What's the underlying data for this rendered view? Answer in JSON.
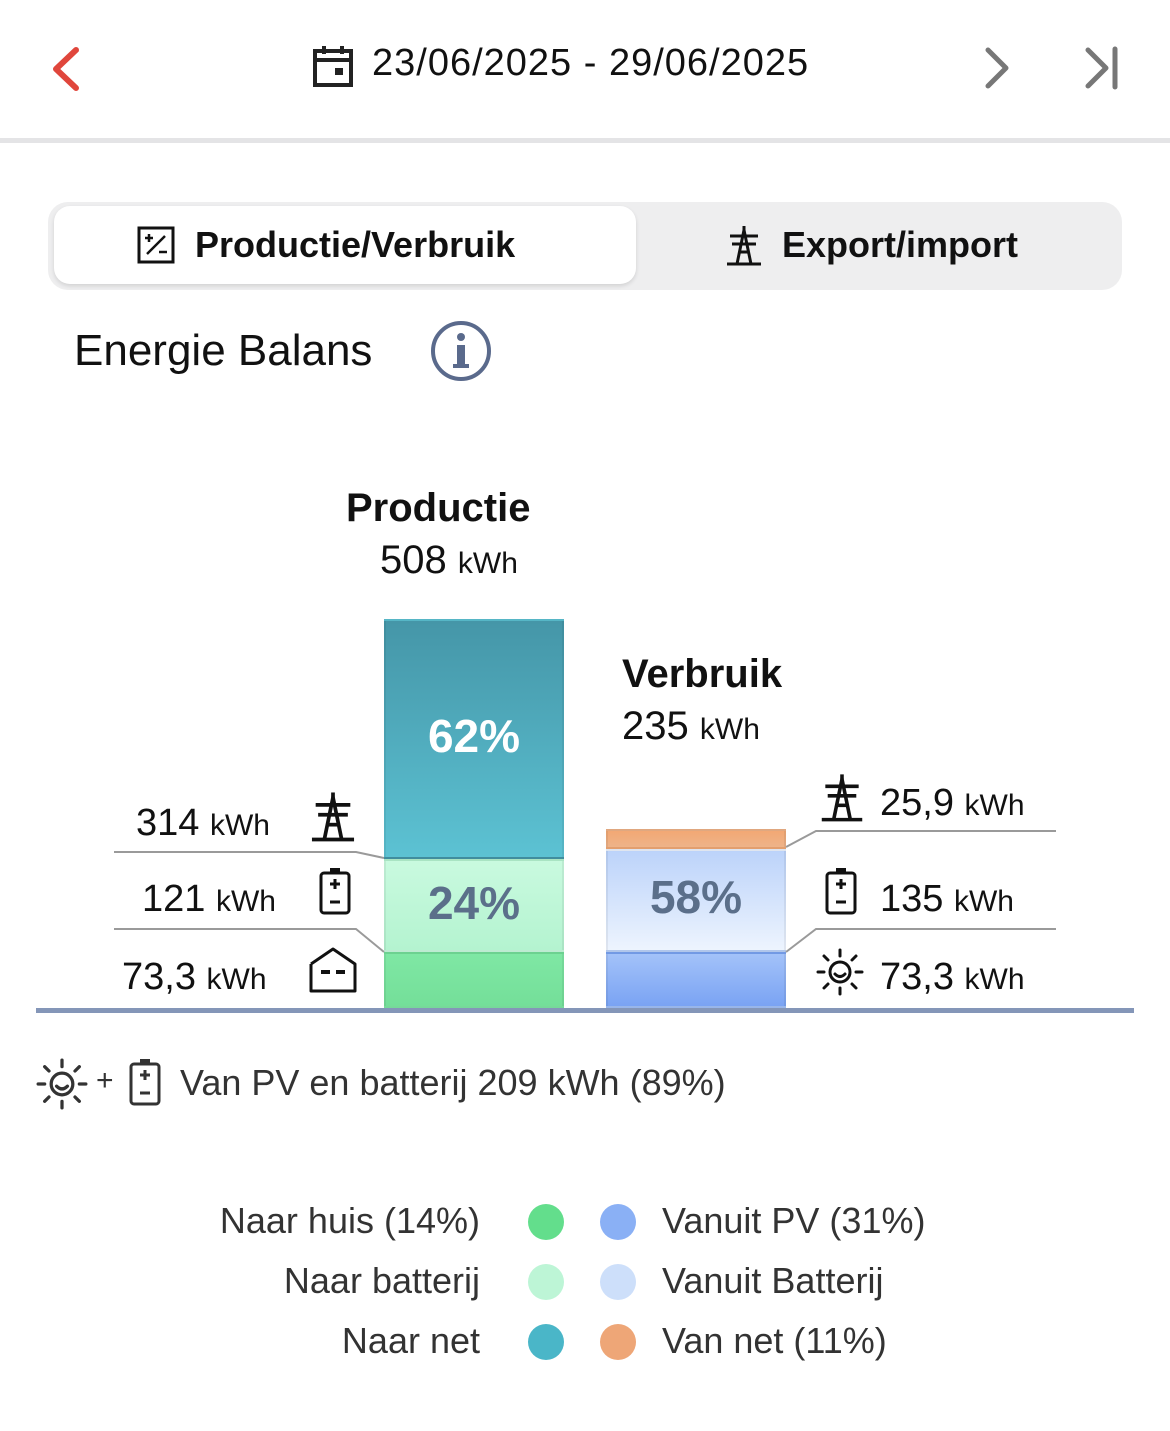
{
  "header": {
    "date_range": "23/06/2025 - 29/06/2025"
  },
  "tabs": [
    {
      "label": "Productie/Verbruik",
      "active": true
    },
    {
      "label": "Export/import",
      "active": false
    }
  ],
  "section": {
    "title": "Energie Balans"
  },
  "chart_data": {
    "type": "bar",
    "categories": [
      "Productie",
      "Verbruik"
    ],
    "production": {
      "label": "Productie",
      "total": "508",
      "unit": "kWh",
      "segments": [
        {
          "name": "Naar huis",
          "kwh": 73.3,
          "value_text": "73,3",
          "percent": "",
          "color": "#7be3a0"
        },
        {
          "name": "Naar batterij",
          "kwh": 121,
          "value_text": "121",
          "percent": "24%",
          "color": "#bdf7d7"
        },
        {
          "name": "Naar net",
          "kwh": 314,
          "value_text": "314",
          "percent": "62%",
          "color": "#4fb7c9"
        }
      ]
    },
    "consumption": {
      "label": "Verbruik",
      "total": "235",
      "unit": "kWh",
      "segments": [
        {
          "name": "Vanuit PV",
          "kwh": 73.3,
          "value_text": "73,3",
          "percent": "",
          "color": "#8cb2f6"
        },
        {
          "name": "Vanuit Batterij",
          "kwh": 135,
          "value_text": "135",
          "percent": "58%",
          "color": "#cfe1fb"
        },
        {
          "name": "Van net",
          "kwh": 25.9,
          "value_text": "25,9",
          "percent": "",
          "color": "#f0b184"
        }
      ]
    },
    "unit": "kWh"
  },
  "summary": {
    "text": "Van PV en batterij 209 kWh (89%)"
  },
  "legend": {
    "left": [
      {
        "label": "Naar huis (14%)",
        "color": "#63de8c"
      },
      {
        "label": "Naar batterij",
        "color": "#bdf5d6"
      },
      {
        "label": "Naar net",
        "color": "#4ab6c8"
      }
    ],
    "right": [
      {
        "label": "Vanuit PV (31%)",
        "color": "#8ab0f5"
      },
      {
        "label": "Vanuit Batterij",
        "color": "#cddffa"
      },
      {
        "label": "Van net (11%)",
        "color": "#eea677"
      }
    ]
  },
  "colors": {
    "accent_back": "#e0463c",
    "axis": "#8496b8",
    "connector": "#9a9a9a"
  },
  "icons": [
    "back-chevron-icon",
    "calendar-icon",
    "forward-chevron-icon",
    "skip-to-end-icon",
    "solar-balance-icon",
    "power-tower-icon",
    "info-icon",
    "battery-icon",
    "house-icon",
    "sun-icon"
  ]
}
